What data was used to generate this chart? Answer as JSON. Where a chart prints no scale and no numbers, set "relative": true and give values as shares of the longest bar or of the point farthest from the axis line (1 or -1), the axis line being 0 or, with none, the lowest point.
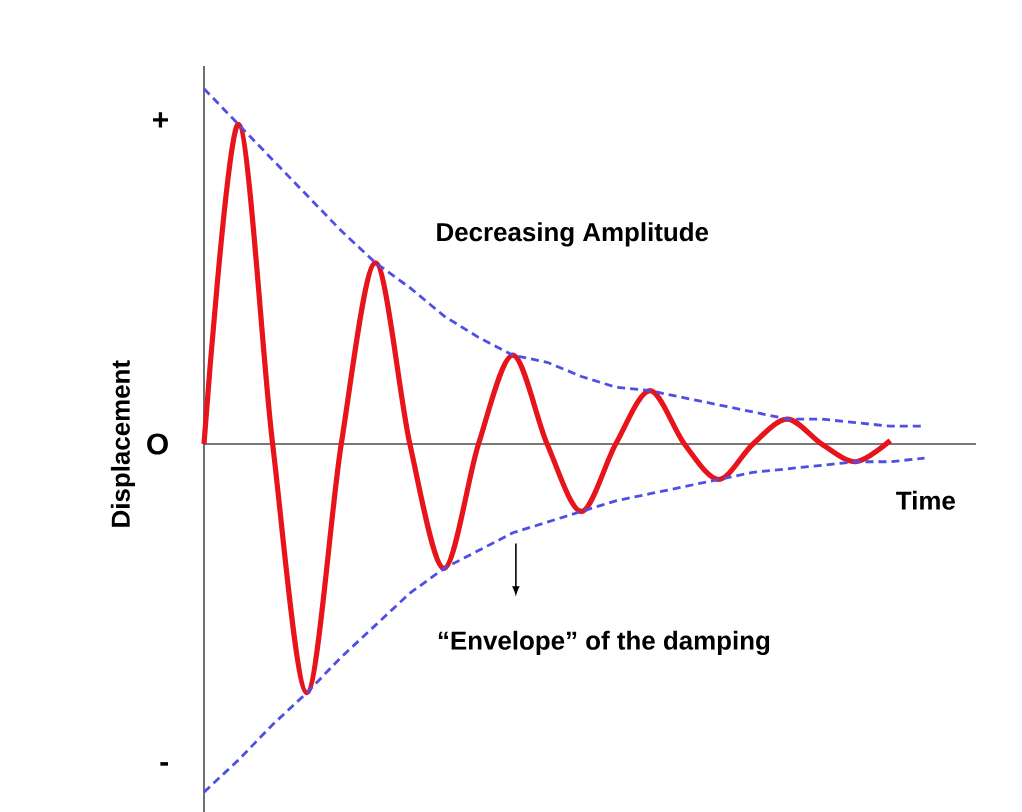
{
  "chart_data": {
    "type": "line",
    "relative": true,
    "xlabel": "Time",
    "ylabel": "Displacement",
    "annotations": [
      "Decreasing Amplitude",
      "“Envelope” of the damping",
      "+",
      "O",
      "-"
    ],
    "categories": [
      null,
      null,
      null,
      null,
      null,
      null,
      null,
      null,
      null,
      null,
      null,
      null,
      null,
      null,
      null,
      null,
      null,
      null,
      null,
      null,
      null,
      null
    ],
    "series": [
      {
        "color": "#e8141b",
        "line_style": "solid",
        "values": [
          0,
          0.9,
          0,
          -0.7,
          0,
          0.51,
          0,
          -0.35,
          0,
          0.25,
          0,
          -0.19,
          0,
          0.15,
          0,
          -0.1,
          0,
          0.07,
          0,
          -0.05,
          0.01,
          null
        ]
      },
      {
        "color": "#4f4fe6",
        "line_style": "dashed",
        "values": [
          1,
          0.9,
          0.8,
          0.7,
          0.6,
          0.51,
          0.44,
          0.36,
          0.3,
          0.25,
          0.23,
          0.19,
          0.16,
          0.15,
          0.13,
          0.11,
          0.09,
          0.07,
          0.07,
          0.06,
          0.05,
          0.05
        ]
      },
      {
        "color": "#4f4fe6",
        "line_style": "dashed",
        "values": [
          -0.98,
          -0.89,
          -0.79,
          -0.7,
          -0.6,
          -0.51,
          -0.42,
          -0.35,
          -0.3,
          -0.25,
          -0.22,
          -0.19,
          -0.16,
          -0.14,
          -0.12,
          -0.1,
          -0.08,
          -0.07,
          -0.06,
          -0.05,
          -0.05,
          -0.04
        ]
      }
    ]
  }
}
